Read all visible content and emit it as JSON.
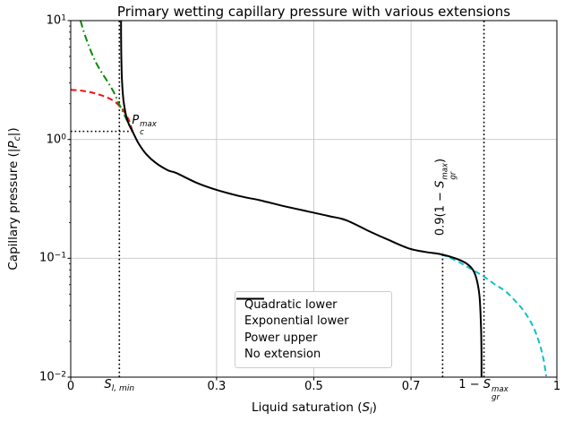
{
  "chart_data": {
    "type": "line",
    "title": "Primary wetting capillary pressure with various extensions",
    "xlabel_parts": [
      {
        "t": "Liquid saturation ("
      },
      {
        "t": "S",
        "i": 1
      },
      {
        "t": "l",
        "i": 1,
        "sub": 1
      },
      {
        "t": ")"
      }
    ],
    "ylabel_parts": [
      {
        "t": "Capillary pressure (|"
      },
      {
        "t": "P",
        "i": 1
      },
      {
        "t": "c",
        "i": 1,
        "sub": 1
      },
      {
        "t": "|)"
      }
    ],
    "xlim": [
      0,
      1
    ],
    "ylim": [
      0.01,
      10
    ],
    "yscale": "log",
    "grid": true,
    "grid_color": "#c6c6c6",
    "spine_color": "#000000",
    "guide_color": "#000000",
    "legend_position": "lower center",
    "xticks": [
      {
        "v": 0,
        "label": "0"
      },
      {
        "v": 0.3,
        "label": "0.3"
      },
      {
        "v": 0.5,
        "label": "0.5"
      },
      {
        "v": 0.7,
        "label": "0.7"
      },
      {
        "v": 1,
        "label": "1"
      }
    ],
    "yticks": [
      {
        "v": 10,
        "parts": [
          {
            "t": "10"
          },
          {
            "t": "1",
            "sup": 1
          }
        ]
      },
      {
        "v": 1,
        "parts": [
          {
            "t": "10"
          },
          {
            "t": "0",
            "sup": 1
          }
        ]
      },
      {
        "v": 0.1,
        "parts": [
          {
            "t": "10"
          },
          {
            "t": "−1",
            "sup": 1
          }
        ]
      },
      {
        "v": 0.01,
        "parts": [
          {
            "t": "10"
          },
          {
            "t": "−2",
            "sup": 1
          }
        ]
      }
    ],
    "params": {
      "S_l_min": 0.1,
      "P_c_max": 1.17,
      "S_gr_max": 0.15,
      "one_minus_S_gr_max": 0.85,
      "x0_9_one_minus_S_gr_max": 0.765
    },
    "series": [
      {
        "id": "quadratic_lower",
        "name": "Quadratic lower",
        "color": "#f01212",
        "dash": "6.5 4",
        "width": 2,
        "points": [
          [
            0,
            2.62
          ],
          [
            0.02,
            2.58
          ],
          [
            0.04,
            2.5
          ],
          [
            0.058,
            2.39
          ],
          [
            0.0755,
            2.25
          ],
          [
            0.09,
            2.09
          ],
          [
            0.0994,
            1.93
          ],
          [
            0.108,
            1.76
          ],
          [
            0.118,
            1.5
          ],
          [
            0.123,
            1.33
          ],
          [
            0.127,
            1.17
          ]
        ]
      },
      {
        "id": "exponential_lower",
        "name": "Exponential lower",
        "color": "#0a8a0a",
        "dash": "8 3.5 1.6 3.5",
        "width": 2,
        "points": [
          [
            0.02,
            10
          ],
          [
            0.032,
            7.0
          ],
          [
            0.048,
            4.78
          ],
          [
            0.062,
            3.75
          ],
          [
            0.0755,
            3.08
          ],
          [
            0.088,
            2.52
          ],
          [
            0.0976,
            2.06
          ],
          [
            0.106,
            1.75
          ],
          [
            0.113,
            1.52
          ],
          [
            0.12,
            1.33
          ],
          [
            0.127,
            1.17
          ]
        ]
      },
      {
        "id": "power_upper",
        "name": "Power upper",
        "color": "#0fc0c8",
        "dash": "6.5 4",
        "width": 2,
        "points": [
          [
            0.762,
            0.108
          ],
          [
            0.78,
            0.101
          ],
          [
            0.803,
            0.091
          ],
          [
            0.825,
            0.0805
          ],
          [
            0.849,
            0.0706
          ],
          [
            0.872,
            0.0605
          ],
          [
            0.895,
            0.0525
          ],
          [
            0.915,
            0.0435
          ],
          [
            0.932,
            0.036
          ],
          [
            0.947,
            0.0288
          ],
          [
            0.958,
            0.0228
          ],
          [
            0.967,
            0.0175
          ],
          [
            0.9735,
            0.0135
          ],
          [
            0.978,
            0.0102
          ]
        ]
      },
      {
        "id": "no_extension",
        "name": "No extension",
        "color": "#000000",
        "dash": "",
        "width": 2,
        "points": [
          [
            0.1035,
            10
          ],
          [
            0.1037,
            6.5
          ],
          [
            0.1042,
            4.6
          ],
          [
            0.1052,
            3.3
          ],
          [
            0.1068,
            2.55
          ],
          [
            0.109,
            2.05
          ],
          [
            0.112,
            1.73
          ],
          [
            0.116,
            1.47
          ],
          [
            0.1215,
            1.29
          ],
          [
            0.127,
            1.17
          ],
          [
            0.14,
            0.92
          ],
          [
            0.155,
            0.755
          ],
          [
            0.175,
            0.635
          ],
          [
            0.2,
            0.55
          ],
          [
            0.217,
            0.522
          ],
          [
            0.26,
            0.43
          ],
          [
            0.302,
            0.374
          ],
          [
            0.35,
            0.332
          ],
          [
            0.389,
            0.308
          ],
          [
            0.44,
            0.274
          ],
          [
            0.486,
            0.249
          ],
          [
            0.53,
            0.227
          ],
          [
            0.567,
            0.209
          ],
          [
            0.615,
            0.168
          ],
          [
            0.655,
            0.142
          ],
          [
            0.696,
            0.121
          ],
          [
            0.73,
            0.113
          ],
          [
            0.762,
            0.108
          ],
          [
            0.794,
            0.099
          ],
          [
            0.815,
            0.09
          ],
          [
            0.828,
            0.079
          ],
          [
            0.836,
            0.064
          ],
          [
            0.841,
            0.047
          ],
          [
            0.8435,
            0.03
          ],
          [
            0.8448,
            0.018
          ],
          [
            0.845,
            0.01
          ]
        ]
      }
    ],
    "guides": [
      {
        "id": "slmin-vline",
        "orient": "v",
        "s": 0.1,
        "p1": 0.01,
        "p2": 10
      },
      {
        "id": "pcmax-hline",
        "orient": "h",
        "p": 1.17,
        "s1": 0,
        "s2": 0.127
      },
      {
        "id": "s09-vline",
        "orient": "v",
        "s": 0.765,
        "p1": 0.01,
        "p2": 0.113
      },
      {
        "id": "sgrmax-vline",
        "orient": "v",
        "s": 0.85,
        "p1": 0.01,
        "p2": 10
      }
    ],
    "annotations": [
      {
        "id": "pc-max-label",
        "placement": "point-bl",
        "s": 0.124,
        "p": 1.17,
        "rot": 0,
        "parts": [
          {
            "t": "P",
            "i": 1
          },
          {
            "i": 1,
            "stack": {
              "sup": "max",
              "sub": "c"
            }
          }
        ]
      },
      {
        "id": "sl-min-label",
        "placement": "below-axis",
        "s": 0.1,
        "rot": 0,
        "parts": [
          {
            "t": "S",
            "i": 1
          },
          {
            "t": "l, min",
            "i": 1,
            "sub": 1
          }
        ]
      },
      {
        "id": "guide-09-label",
        "placement": "rotated-center",
        "s": 0.771,
        "p": 0.33,
        "rot": 270,
        "parts": [
          {
            "t": "0.9(1 − "
          },
          {
            "t": "S",
            "i": 1
          },
          {
            "i": 1,
            "stack": {
              "sup": "max",
              "sub": "gr"
            }
          },
          {
            "t": ")"
          }
        ]
      },
      {
        "id": "sgr-max-label",
        "placement": "below-axis",
        "s": 0.849,
        "rot": 0,
        "parts": [
          {
            "t": "1 − "
          },
          {
            "t": "S",
            "i": 1
          },
          {
            "i": 1,
            "stack": {
              "sup": "max",
              "sub": "gr"
            }
          }
        ]
      }
    ]
  }
}
